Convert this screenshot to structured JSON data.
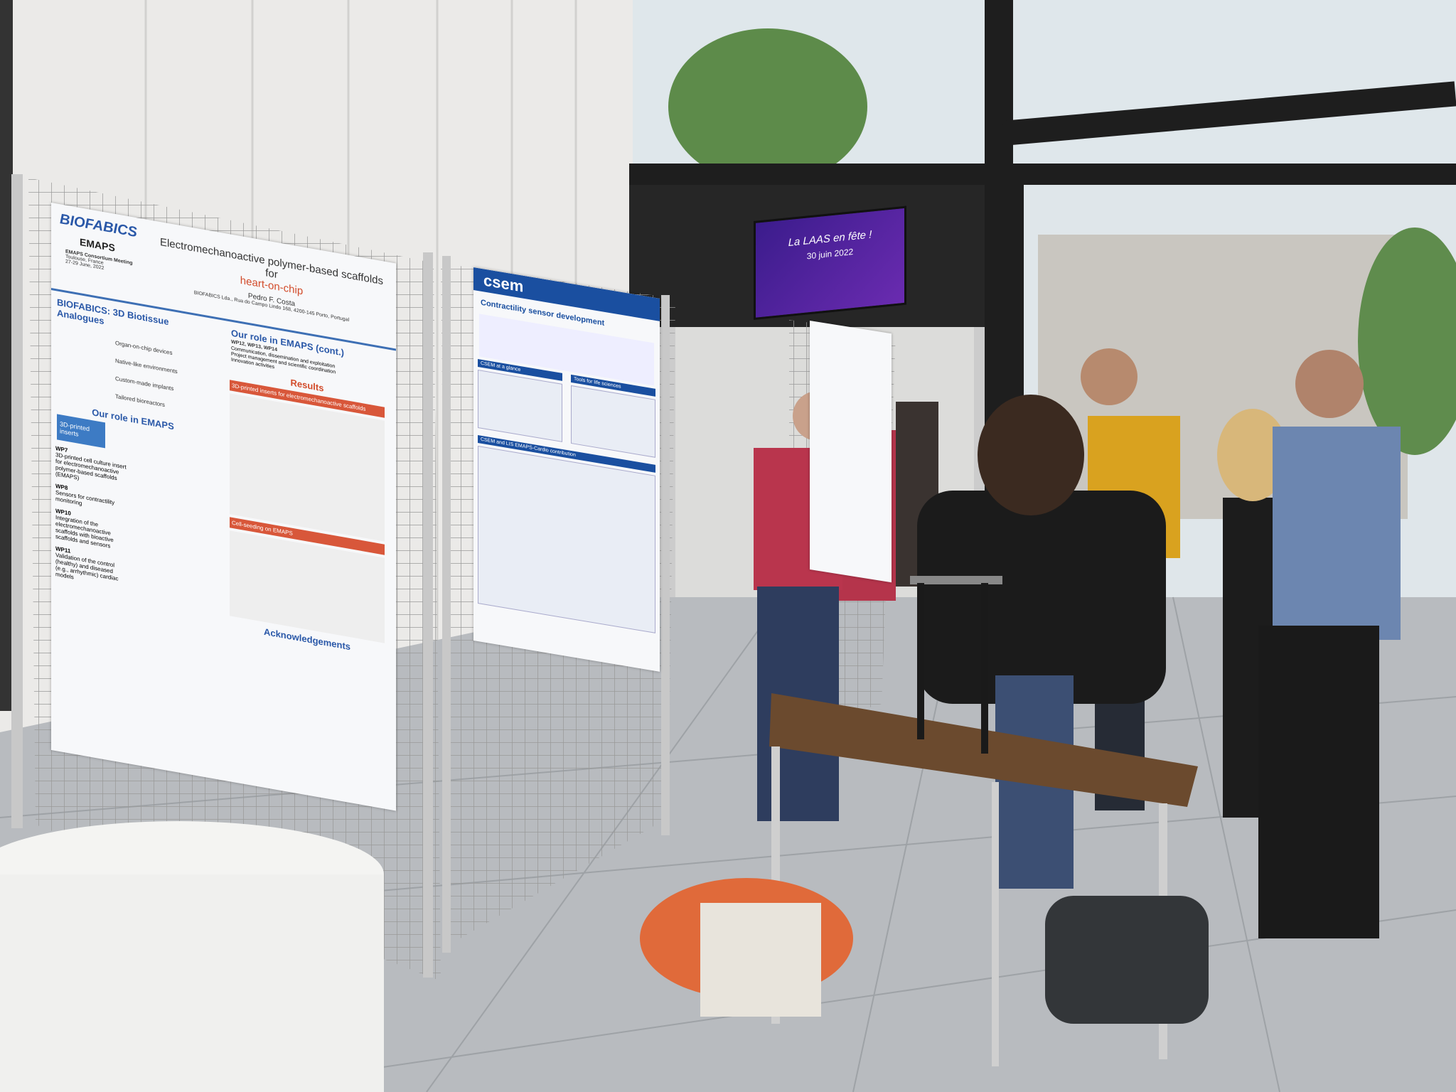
{
  "poster_left": {
    "logo": "BIOFABICS",
    "sub_logo": "EMAPS",
    "meeting": "EMAPS Consortium Meeting",
    "place": "Toulouse, France",
    "dates": "27-29 June, 2022",
    "title": "Electromechanoactive polymer-based scaffolds for",
    "title_highlight": "heart-on-chip",
    "author": "Pedro F. Costa",
    "affiliation": "BIOFABICS Lda., Rua do Campo Lindo 168, 4200-145 Porto, Portugal",
    "section_1": "BIOFABICS: 3D Biotissue Analogues",
    "items": [
      "Organ-on-chip devices",
      "Native-like environments",
      "Custom-made implants",
      "Tailored bioreactors"
    ],
    "section_2": "Our role in EMAPS",
    "box_label": "3D-printed inserts",
    "work_packages": [
      {
        "code": "WP7",
        "text": "3D-printed cell culture insert for electromechanoactive polymer-based scaffolds (EMAPS)"
      },
      {
        "code": "WP8",
        "text": "Sensors for contractility monitoring"
      },
      {
        "code": "WP10",
        "text": "Integration of the electromechanoactive scaffolds with bioactive scaffolds and sensors"
      },
      {
        "code": "WP11",
        "text": "Validation of the control (healthy) and diseased (e.g., arrhythmic) cardiac models"
      }
    ],
    "section_3": "Our role in EMAPS (cont.)",
    "wp_group": "WP12, WP13, WP14",
    "roles": [
      "Communication, dissemination and exploitation",
      "Project management and scientific coordination",
      "Innovation activities"
    ],
    "section_4": "Results",
    "results_bar": "3D-printed inserts for electromechanoactive scaffolds",
    "seeding_bar": "Cell-seeding on EMAPS",
    "section_5": "Acknowledgements"
  },
  "poster_middle": {
    "logo": "csem",
    "title": "Contractility sensor development",
    "box_1": "CSEM at a glance",
    "box_2": "Tools for life sciences",
    "box_3": "CSEM and LIS EMAPS-Cardio contribution"
  },
  "screen": {
    "title": "La LAAS en fête !",
    "date": "30 juin 2022"
  }
}
